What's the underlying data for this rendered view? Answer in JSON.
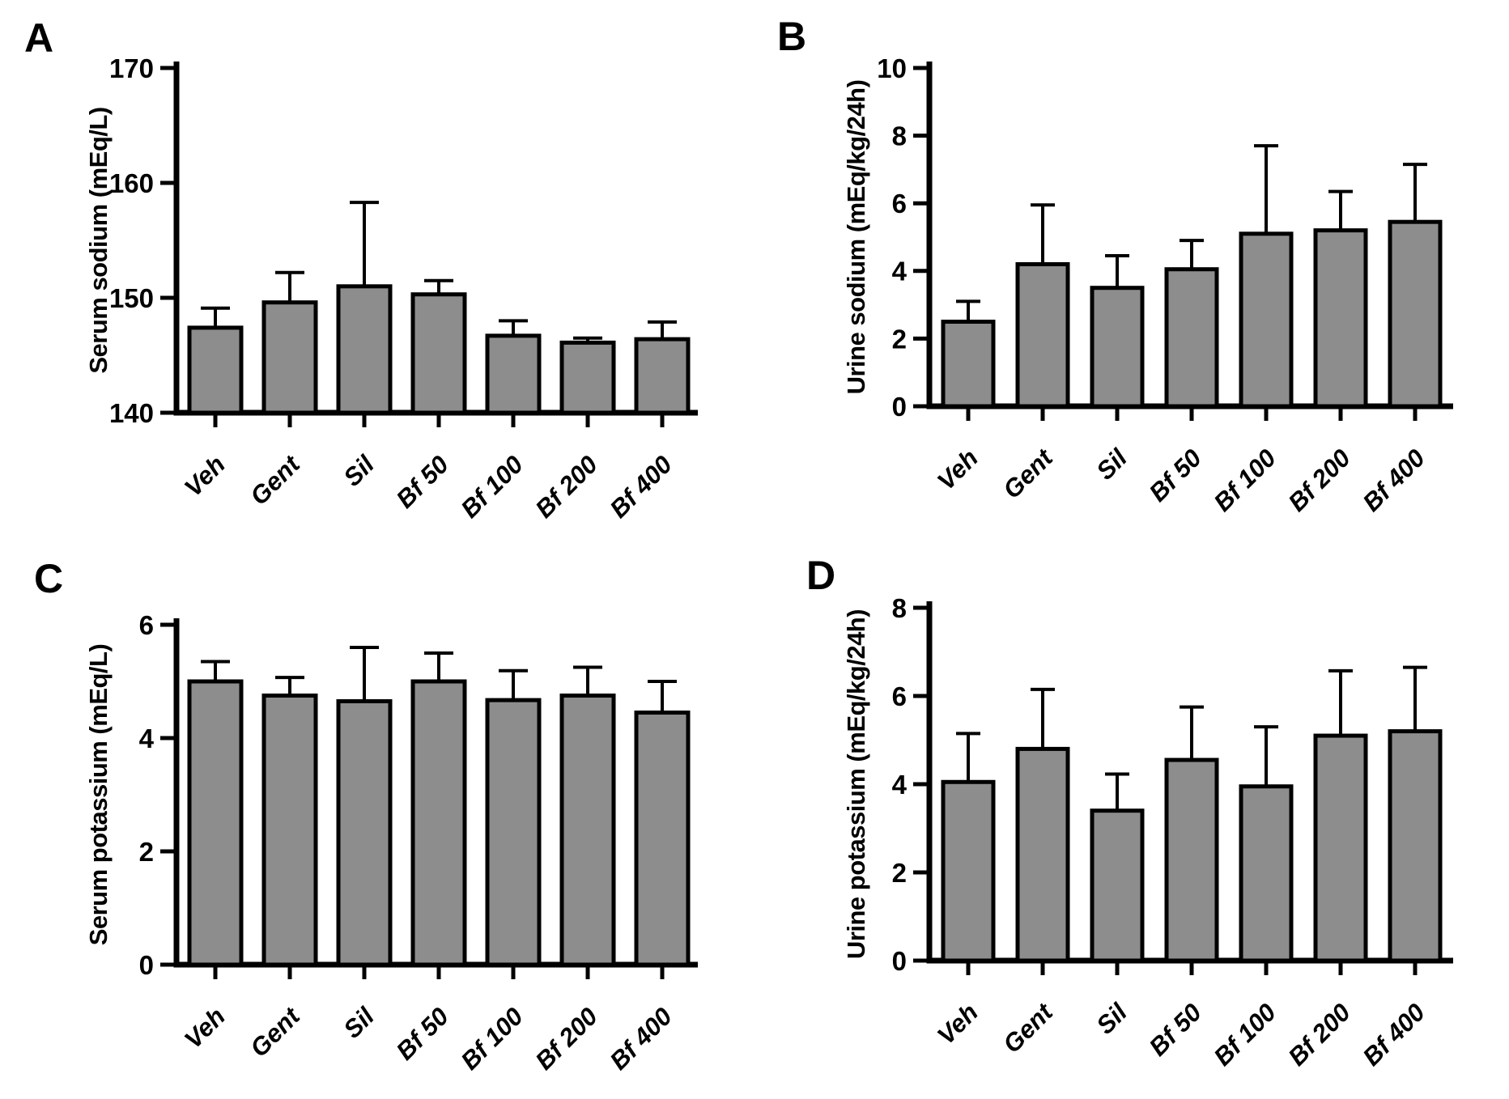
{
  "styles": {
    "background": "#ffffff",
    "bar_fill": "#8d8d8d",
    "bar_stroke": "#000000",
    "axis_color": "#000000",
    "text_color": "#000000"
  },
  "chart_data": [
    {
      "type": "bar",
      "panel_label": "A",
      "ylabel": "Serum sodium (mEq/L)",
      "xlabel": "",
      "categories": [
        "Veh",
        "Gent",
        "Sil",
        "Bf 50",
        "Bf 100",
        "Bf 200",
        "Bf 400"
      ],
      "values": [
        147.4,
        149.6,
        151.0,
        150.3,
        146.7,
        146.1,
        146.4
      ],
      "errors_up": [
        1.7,
        2.6,
        7.3,
        1.2,
        1.3,
        0.4,
        1.5
      ],
      "ylim": [
        140,
        170
      ],
      "yticks": [
        140,
        150,
        160,
        170
      ],
      "grid": false,
      "legend": false
    },
    {
      "type": "bar",
      "panel_label": "B",
      "ylabel": "Urine sodium (mEq/kg/24h)",
      "xlabel": "",
      "categories": [
        "Veh",
        "Gent",
        "Sil",
        "Bf 50",
        "Bf 100",
        "Bf 200",
        "Bf 400"
      ],
      "values": [
        2.5,
        4.2,
        3.5,
        4.05,
        5.1,
        5.2,
        5.45
      ],
      "errors_up": [
        0.6,
        1.75,
        0.95,
        0.85,
        2.6,
        1.15,
        1.7
      ],
      "ylim": [
        0,
        10
      ],
      "yticks": [
        0,
        2,
        4,
        6,
        8,
        10
      ],
      "grid": false,
      "legend": false
    },
    {
      "type": "bar",
      "panel_label": "C",
      "ylabel": "Serum potassium (mEq/L)",
      "xlabel": "",
      "categories": [
        "Veh",
        "Gent",
        "Sil",
        "Bf 50",
        "Bf 100",
        "Bf 200",
        "Bf 400"
      ],
      "values": [
        5.0,
        4.75,
        4.65,
        5.0,
        4.67,
        4.75,
        4.45
      ],
      "errors_up": [
        0.35,
        0.32,
        0.95,
        0.5,
        0.52,
        0.5,
        0.55
      ],
      "ylim": [
        0,
        6
      ],
      "yticks": [
        0,
        2,
        4,
        6
      ],
      "grid": false,
      "legend": false
    },
    {
      "type": "bar",
      "panel_label": "D",
      "ylabel": "Urine potassium (mEq/kg/24h)",
      "xlabel": "",
      "categories": [
        "Veh",
        "Gent",
        "Sil",
        "Bf 50",
        "Bf 100",
        "Bf 200",
        "Bf 400"
      ],
      "values": [
        4.05,
        4.8,
        3.4,
        4.55,
        3.95,
        5.1,
        5.2
      ],
      "errors_up": [
        1.1,
        1.35,
        0.83,
        1.2,
        1.35,
        1.47,
        1.45
      ],
      "ylim": [
        0,
        8
      ],
      "yticks": [
        0,
        2,
        4,
        6,
        8
      ],
      "grid": false,
      "legend": false
    }
  ]
}
